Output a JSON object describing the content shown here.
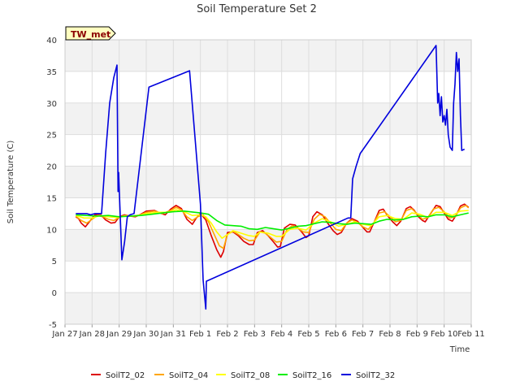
{
  "chart_data": {
    "type": "line",
    "title": "Soil Temperature Set 2",
    "xlabel": "Time",
    "ylabel": "Soil Temperature (C)",
    "badge": "TW_met",
    "ylim": [
      -5,
      40
    ],
    "yticks": [
      -5,
      0,
      5,
      10,
      15,
      20,
      25,
      30,
      35,
      40
    ],
    "xlim": [
      0,
      15
    ],
    "xticks": [
      {
        "v": 0,
        "label": "Jan 27"
      },
      {
        "v": 1,
        "label": "Jan 28"
      },
      {
        "v": 2,
        "label": "Jan 29"
      },
      {
        "v": 3,
        "label": "Jan 30"
      },
      {
        "v": 4,
        "label": "Jan 31"
      },
      {
        "v": 5,
        "label": "Feb 1"
      },
      {
        "v": 6,
        "label": "Feb 2"
      },
      {
        "v": 7,
        "label": "Feb 3"
      },
      {
        "v": 8,
        "label": "Feb 4"
      },
      {
        "v": 9,
        "label": "Feb 5"
      },
      {
        "v": 10,
        "label": "Feb 6"
      },
      {
        "v": 11,
        "label": "Feb 7"
      },
      {
        "v": 12,
        "label": "Feb 8"
      },
      {
        "v": 13,
        "label": "Feb 9"
      },
      {
        "v": 14,
        "label": "Feb 10"
      },
      {
        "v": 15,
        "label": "Feb 11"
      }
    ],
    "grid": true,
    "legend_position": "bottom",
    "series": [
      {
        "name": "SoilT2_02",
        "color": "#dd0000",
        "points": [
          [
            0.4,
            12.0
          ],
          [
            0.5,
            11.7
          ],
          [
            0.6,
            11.0
          ],
          [
            0.75,
            10.4
          ],
          [
            0.9,
            11.2
          ],
          [
            1.1,
            12.3
          ],
          [
            1.3,
            12.4
          ],
          [
            1.5,
            11.5
          ],
          [
            1.7,
            11.0
          ],
          [
            1.85,
            11.1
          ],
          [
            2.0,
            12.0
          ],
          [
            2.2,
            12.3
          ],
          [
            2.4,
            12.1
          ],
          [
            2.6,
            12.0
          ],
          [
            2.8,
            12.4
          ],
          [
            3.0,
            12.9
          ],
          [
            3.3,
            13.0
          ],
          [
            3.5,
            12.6
          ],
          [
            3.7,
            12.3
          ],
          [
            3.9,
            13.2
          ],
          [
            4.1,
            13.8
          ],
          [
            4.3,
            13.3
          ],
          [
            4.5,
            11.6
          ],
          [
            4.7,
            10.8
          ],
          [
            4.85,
            11.8
          ],
          [
            5.0,
            12.5
          ],
          [
            5.2,
            11.5
          ],
          [
            5.4,
            9.0
          ],
          [
            5.6,
            6.8
          ],
          [
            5.75,
            5.6
          ],
          [
            5.85,
            6.5
          ],
          [
            6.0,
            9.5
          ],
          [
            6.2,
            9.6
          ],
          [
            6.4,
            9.0
          ],
          [
            6.6,
            8.1
          ],
          [
            6.8,
            7.6
          ],
          [
            6.95,
            7.6
          ],
          [
            7.1,
            9.5
          ],
          [
            7.3,
            9.8
          ],
          [
            7.5,
            9.0
          ],
          [
            7.7,
            8.0
          ],
          [
            7.85,
            7.2
          ],
          [
            7.95,
            7.3
          ],
          [
            8.1,
            10.2
          ],
          [
            8.3,
            10.8
          ],
          [
            8.5,
            10.7
          ],
          [
            8.7,
            9.8
          ],
          [
            8.9,
            8.7
          ],
          [
            9.0,
            9.0
          ],
          [
            9.15,
            12.0
          ],
          [
            9.3,
            12.8
          ],
          [
            9.5,
            12.3
          ],
          [
            9.7,
            11.0
          ],
          [
            9.9,
            9.8
          ],
          [
            10.05,
            9.2
          ],
          [
            10.2,
            9.5
          ],
          [
            10.4,
            11.0
          ],
          [
            10.6,
            11.7
          ],
          [
            10.8,
            11.3
          ],
          [
            11.0,
            10.3
          ],
          [
            11.15,
            9.6
          ],
          [
            11.25,
            9.6
          ],
          [
            11.4,
            11.0
          ],
          [
            11.6,
            13.0
          ],
          [
            11.75,
            13.2
          ],
          [
            11.9,
            12.2
          ],
          [
            12.1,
            11.2
          ],
          [
            12.25,
            10.6
          ],
          [
            12.4,
            11.3
          ],
          [
            12.6,
            13.3
          ],
          [
            12.75,
            13.6
          ],
          [
            12.9,
            13.0
          ],
          [
            13.05,
            12.0
          ],
          [
            13.2,
            11.4
          ],
          [
            13.3,
            11.2
          ],
          [
            13.5,
            12.5
          ],
          [
            13.7,
            13.8
          ],
          [
            13.85,
            13.6
          ],
          [
            14.0,
            12.6
          ],
          [
            14.15,
            11.6
          ],
          [
            14.3,
            11.3
          ],
          [
            14.45,
            12.3
          ],
          [
            14.6,
            13.7
          ],
          [
            14.75,
            14.0
          ],
          [
            14.9,
            13.5
          ]
        ]
      },
      {
        "name": "SoilT2_04",
        "color": "#ffa500",
        "points": [
          [
            0.4,
            12.1
          ],
          [
            0.6,
            11.4
          ],
          [
            0.8,
            11.0
          ],
          [
            1.0,
            11.6
          ],
          [
            1.2,
            12.2
          ],
          [
            1.4,
            12.0
          ],
          [
            1.6,
            11.6
          ],
          [
            1.8,
            11.4
          ],
          [
            2.0,
            11.9
          ],
          [
            2.2,
            12.2
          ],
          [
            2.5,
            12.1
          ],
          [
            2.8,
            12.3
          ],
          [
            3.0,
            12.7
          ],
          [
            3.3,
            12.9
          ],
          [
            3.6,
            12.5
          ],
          [
            3.9,
            13.0
          ],
          [
            4.1,
            13.5
          ],
          [
            4.3,
            13.1
          ],
          [
            4.5,
            12.0
          ],
          [
            4.7,
            11.4
          ],
          [
            4.9,
            12.0
          ],
          [
            5.1,
            12.3
          ],
          [
            5.3,
            11.2
          ],
          [
            5.5,
            9.3
          ],
          [
            5.7,
            7.4
          ],
          [
            5.85,
            7.0
          ],
          [
            6.0,
            9.2
          ],
          [
            6.2,
            9.7
          ],
          [
            6.4,
            9.2
          ],
          [
            6.6,
            8.6
          ],
          [
            6.8,
            8.2
          ],
          [
            7.0,
            8.3
          ],
          [
            7.2,
            9.6
          ],
          [
            7.4,
            9.4
          ],
          [
            7.6,
            8.7
          ],
          [
            7.8,
            8.0
          ],
          [
            8.0,
            8.1
          ],
          [
            8.2,
            10.0
          ],
          [
            8.4,
            10.6
          ],
          [
            8.6,
            10.2
          ],
          [
            8.8,
            9.6
          ],
          [
            9.0,
            9.5
          ],
          [
            9.2,
            11.6
          ],
          [
            9.4,
            12.4
          ],
          [
            9.6,
            12.0
          ],
          [
            9.8,
            11.0
          ],
          [
            10.0,
            10.0
          ],
          [
            10.2,
            9.8
          ],
          [
            10.4,
            11.0
          ],
          [
            10.6,
            11.5
          ],
          [
            10.8,
            11.1
          ],
          [
            11.0,
            10.4
          ],
          [
            11.2,
            10.0
          ],
          [
            11.4,
            11.0
          ],
          [
            11.6,
            12.6
          ],
          [
            11.8,
            12.8
          ],
          [
            12.0,
            12.0
          ],
          [
            12.2,
            11.2
          ],
          [
            12.4,
            11.4
          ],
          [
            12.6,
            13.0
          ],
          [
            12.8,
            13.3
          ],
          [
            13.0,
            12.5
          ],
          [
            13.2,
            11.6
          ],
          [
            13.4,
            11.9
          ],
          [
            13.6,
            13.2
          ],
          [
            13.8,
            13.5
          ],
          [
            14.0,
            12.8
          ],
          [
            14.2,
            11.8
          ],
          [
            14.4,
            12.0
          ],
          [
            14.6,
            13.4
          ],
          [
            14.8,
            13.8
          ],
          [
            14.9,
            13.4
          ]
        ]
      },
      {
        "name": "SoilT2_08",
        "color": "#ffff00",
        "points": [
          [
            0.4,
            12.2
          ],
          [
            0.7,
            11.8
          ],
          [
            1.0,
            11.8
          ],
          [
            1.3,
            12.2
          ],
          [
            1.6,
            12.0
          ],
          [
            1.9,
            11.9
          ],
          [
            2.2,
            12.1
          ],
          [
            2.6,
            12.1
          ],
          [
            3.0,
            12.5
          ],
          [
            3.4,
            12.7
          ],
          [
            3.8,
            12.7
          ],
          [
            4.1,
            13.1
          ],
          [
            4.4,
            12.8
          ],
          [
            4.7,
            12.2
          ],
          [
            5.0,
            12.3
          ],
          [
            5.2,
            12.0
          ],
          [
            5.4,
            11.0
          ],
          [
            5.6,
            9.6
          ],
          [
            5.8,
            8.6
          ],
          [
            6.0,
            9.2
          ],
          [
            6.2,
            9.8
          ],
          [
            6.5,
            9.4
          ],
          [
            6.8,
            9.0
          ],
          [
            7.0,
            8.9
          ],
          [
            7.2,
            9.6
          ],
          [
            7.5,
            9.4
          ],
          [
            7.8,
            8.9
          ],
          [
            8.0,
            8.9
          ],
          [
            8.3,
            10.0
          ],
          [
            8.6,
            10.2
          ],
          [
            8.9,
            9.9
          ],
          [
            9.2,
            11.0
          ],
          [
            9.5,
            11.7
          ],
          [
            9.8,
            11.2
          ],
          [
            10.1,
            10.5
          ],
          [
            10.4,
            10.8
          ],
          [
            10.7,
            11.2
          ],
          [
            11.0,
            10.8
          ],
          [
            11.3,
            10.6
          ],
          [
            11.6,
            12.0
          ],
          [
            11.9,
            12.2
          ],
          [
            12.2,
            11.7
          ],
          [
            12.5,
            11.6
          ],
          [
            12.8,
            12.6
          ],
          [
            13.1,
            12.4
          ],
          [
            13.4,
            11.9
          ],
          [
            13.7,
            12.7
          ],
          [
            14.0,
            12.7
          ],
          [
            14.3,
            12.2
          ],
          [
            14.6,
            12.9
          ],
          [
            14.9,
            13.0
          ]
        ]
      },
      {
        "name": "SoilT2_16",
        "color": "#00ee00",
        "points": [
          [
            0.4,
            12.3
          ],
          [
            0.8,
            12.2
          ],
          [
            1.2,
            12.1
          ],
          [
            1.6,
            12.2
          ],
          [
            2.0,
            12.0
          ],
          [
            2.4,
            12.1
          ],
          [
            2.8,
            12.2
          ],
          [
            3.2,
            12.4
          ],
          [
            3.6,
            12.6
          ],
          [
            4.0,
            12.8
          ],
          [
            4.4,
            12.9
          ],
          [
            4.8,
            12.7
          ],
          [
            5.0,
            12.6
          ],
          [
            5.3,
            12.4
          ],
          [
            5.6,
            11.4
          ],
          [
            5.9,
            10.7
          ],
          [
            6.2,
            10.6
          ],
          [
            6.5,
            10.5
          ],
          [
            6.8,
            10.1
          ],
          [
            7.1,
            10.0
          ],
          [
            7.4,
            10.3
          ],
          [
            7.7,
            10.1
          ],
          [
            8.0,
            9.9
          ],
          [
            8.3,
            10.2
          ],
          [
            8.6,
            10.5
          ],
          [
            8.9,
            10.6
          ],
          [
            9.2,
            10.9
          ],
          [
            9.5,
            11.2
          ],
          [
            9.8,
            11.1
          ],
          [
            10.1,
            10.9
          ],
          [
            10.4,
            10.8
          ],
          [
            10.7,
            11.0
          ],
          [
            11.0,
            10.9
          ],
          [
            11.3,
            10.8
          ],
          [
            11.6,
            11.3
          ],
          [
            11.9,
            11.6
          ],
          [
            12.2,
            11.5
          ],
          [
            12.5,
            11.6
          ],
          [
            12.8,
            12.0
          ],
          [
            13.1,
            12.1
          ],
          [
            13.4,
            12.0
          ],
          [
            13.7,
            12.3
          ],
          [
            14.0,
            12.3
          ],
          [
            14.3,
            12.0
          ],
          [
            14.6,
            12.3
          ],
          [
            14.9,
            12.6
          ]
        ]
      },
      {
        "name": "SoilT2_32",
        "color": "#0000dd",
        "points": [
          [
            0.4,
            12.5
          ],
          [
            0.8,
            12.5
          ],
          [
            0.95,
            12.3
          ],
          [
            1.1,
            12.5
          ],
          [
            1.35,
            12.5
          ],
          [
            1.5,
            22.0
          ],
          [
            1.65,
            30.0
          ],
          [
            1.8,
            34.0
          ],
          [
            1.92,
            36.0
          ],
          [
            1.96,
            16.0
          ],
          [
            1.98,
            19.0
          ],
          [
            2.1,
            5.2
          ],
          [
            2.2,
            8.0
          ],
          [
            2.3,
            12.0
          ],
          [
            2.4,
            12.3
          ],
          [
            2.55,
            12.5
          ],
          [
            3.1,
            32.5
          ],
          [
            4.6,
            35.1
          ],
          [
            5.0,
            14.0
          ],
          [
            5.1,
            2.0
          ],
          [
            5.2,
            -2.6
          ],
          [
            5.22,
            1.8
          ],
          [
            10.45,
            11.8
          ],
          [
            10.55,
            11.8
          ],
          [
            10.62,
            18.0
          ],
          [
            10.75,
            20.0
          ],
          [
            10.9,
            22.0
          ],
          [
            13.7,
            39.1
          ],
          [
            13.76,
            30.0
          ],
          [
            13.8,
            31.5
          ],
          [
            13.85,
            28.0
          ],
          [
            13.9,
            31.0
          ],
          [
            13.95,
            27.0
          ],
          [
            14.0,
            28.0
          ],
          [
            14.05,
            26.5
          ],
          [
            14.1,
            29.0
          ],
          [
            14.15,
            25.0
          ],
          [
            14.22,
            23.0
          ],
          [
            14.3,
            22.5
          ],
          [
            14.35,
            30.0
          ],
          [
            14.4,
            33.0
          ],
          [
            14.45,
            38.0
          ],
          [
            14.5,
            35.0
          ],
          [
            14.55,
            37.0
          ],
          [
            14.6,
            28.0
          ],
          [
            14.65,
            22.5
          ],
          [
            14.75,
            22.7
          ]
        ]
      }
    ]
  }
}
